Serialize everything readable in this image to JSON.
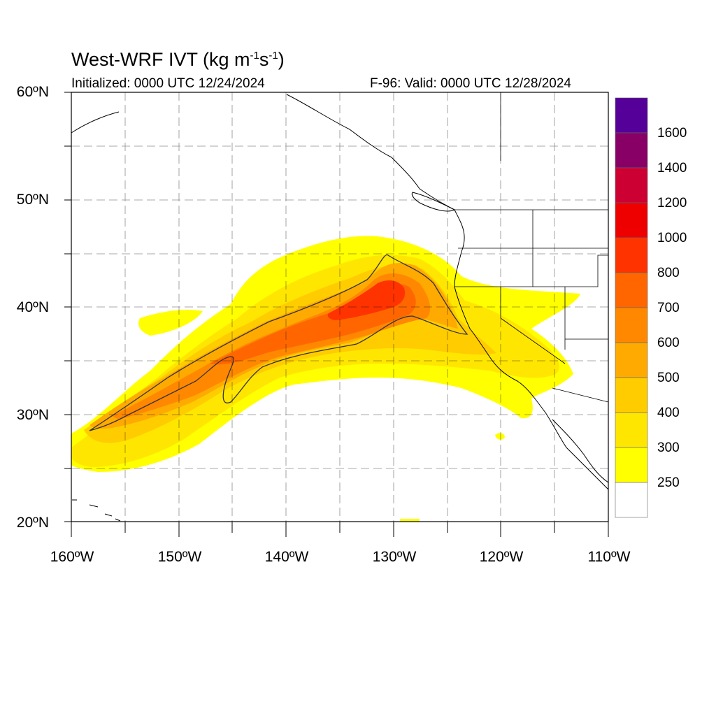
{
  "title": {
    "main": "West-WRF IVT (kg m",
    "exp1": "-1",
    "s": "s",
    "exp2": "-1",
    "close": ")"
  },
  "init_text": "Initialized: 0000 UTC 12/24/2024",
  "valid_text": "F-96: Valid: 0000 UTC 12/28/2024",
  "lat_labels": [
    "60ºN",
    "50ºN",
    "40ºN",
    "30ºN",
    "20ºN"
  ],
  "lon_labels": [
    "160ºW",
    "150ºW",
    "140ºW",
    "130ºW",
    "120ºW",
    "110ºW"
  ],
  "colorbar": {
    "labels": [
      "1600",
      "1400",
      "1200",
      "1000",
      "800",
      "700",
      "600",
      "500",
      "400",
      "300",
      "250"
    ],
    "colors": [
      "#ffffff",
      "#ffff00",
      "#ffe600",
      "#ffcc00",
      "#ffaa00",
      "#ff8800",
      "#ff6600",
      "#ff3300",
      "#ee0000",
      "#cc0033",
      "#880066",
      "#550099"
    ]
  },
  "map": {
    "variable": "IVT",
    "units": "kg m-1 s-1",
    "lon_range": [
      -160,
      -110
    ],
    "lat_range": [
      20,
      60
    ],
    "grid_interval_deg": 5,
    "contour_level": 500
  }
}
